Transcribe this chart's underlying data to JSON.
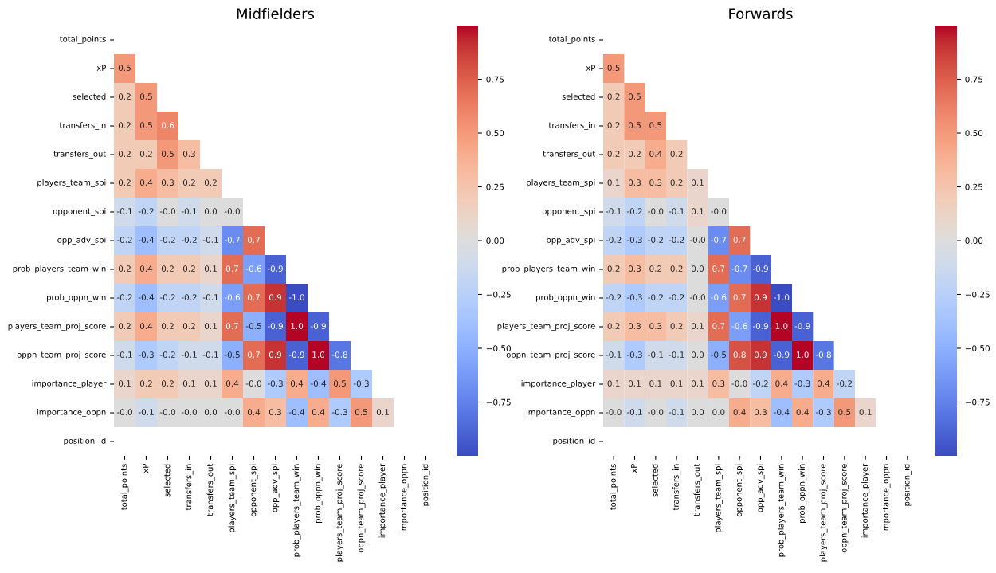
{
  "chart_data": [
    {
      "type": "heatmap",
      "title": "Midfielders",
      "categories": [
        "total_points",
        "xP",
        "selected",
        "transfers_in",
        "transfers_out",
        "players_team_spi",
        "opponent_spi",
        "opp_adv_spi",
        "prob_players_team_win",
        "prob_oppn_win",
        "players_team_proj_score",
        "oppn_team_proj_score",
        "importance_player",
        "importance_oppn",
        "position_id"
      ],
      "y_categories": [
        "total_points",
        "xP",
        "selected",
        "transfers_in",
        "transfers_out",
        "players_team_spi",
        "opponent_spi",
        "opp_adv_spi",
        "prob_players_team_win",
        "prob_oppn_win",
        "players_team_proj_score",
        "oppn_team_proj_score",
        "importance_player",
        "importance_oppn",
        "position_id"
      ],
      "cells": [
        [
          null,
          null,
          null,
          null,
          null,
          null,
          null,
          null,
          null,
          null,
          null,
          null,
          null,
          null,
          null
        ],
        [
          0.5,
          null,
          null,
          null,
          null,
          null,
          null,
          null,
          null,
          null,
          null,
          null,
          null,
          null,
          null
        ],
        [
          0.2,
          0.5,
          null,
          null,
          null,
          null,
          null,
          null,
          null,
          null,
          null,
          null,
          null,
          null,
          null
        ],
        [
          0.2,
          0.5,
          0.6,
          null,
          null,
          null,
          null,
          null,
          null,
          null,
          null,
          null,
          null,
          null,
          null
        ],
        [
          0.2,
          0.2,
          0.5,
          0.3,
          null,
          null,
          null,
          null,
          null,
          null,
          null,
          null,
          null,
          null,
          null
        ],
        [
          0.2,
          0.4,
          0.3,
          0.2,
          0.2,
          null,
          null,
          null,
          null,
          null,
          null,
          null,
          null,
          null,
          null
        ],
        [
          -0.1,
          -0.2,
          0,
          -0.1,
          0,
          0,
          null,
          null,
          null,
          null,
          null,
          null,
          null,
          null,
          null
        ],
        [
          -0.2,
          -0.4,
          -0.2,
          -0.2,
          -0.1,
          -0.7,
          0.7,
          null,
          null,
          null,
          null,
          null,
          null,
          null,
          null
        ],
        [
          0.2,
          0.4,
          0.2,
          0.2,
          0.1,
          0.7,
          -0.6,
          -0.9,
          null,
          null,
          null,
          null,
          null,
          null,
          null
        ],
        [
          -0.2,
          -0.4,
          -0.2,
          -0.2,
          -0.1,
          -0.6,
          0.7,
          0.9,
          -1,
          null,
          null,
          null,
          null,
          null,
          null
        ],
        [
          0.2,
          0.4,
          0.2,
          0.2,
          0.1,
          0.7,
          -0.5,
          -0.9,
          1,
          -0.9,
          null,
          null,
          null,
          null,
          null
        ],
        [
          -0.1,
          -0.3,
          -0.2,
          -0.1,
          -0.1,
          -0.5,
          0.7,
          0.9,
          -0.9,
          1,
          -0.8,
          null,
          null,
          null,
          null
        ],
        [
          0.1,
          0.2,
          0.2,
          0.1,
          0.1,
          0.4,
          0,
          -0.3,
          0.4,
          -0.4,
          0.5,
          -0.3,
          null,
          null,
          null
        ],
        [
          0,
          -0.1,
          0,
          0,
          0,
          0,
          0.4,
          0.3,
          -0.4,
          0.4,
          -0.3,
          0.5,
          0.1,
          null,
          null
        ],
        [
          null,
          null,
          null,
          null,
          null,
          null,
          null,
          null,
          null,
          null,
          null,
          null,
          null,
          null,
          null
        ]
      ],
      "cell_labels": [
        [
          null,
          null,
          null,
          null,
          null,
          null,
          null,
          null,
          null,
          null,
          null,
          null,
          null,
          null,
          null
        ],
        [
          "0.5",
          null,
          null,
          null,
          null,
          null,
          null,
          null,
          null,
          null,
          null,
          null,
          null,
          null,
          null
        ],
        [
          "0.2",
          "0.5",
          null,
          null,
          null,
          null,
          null,
          null,
          null,
          null,
          null,
          null,
          null,
          null,
          null
        ],
        [
          "0.2",
          "0.5",
          "0.6",
          null,
          null,
          null,
          null,
          null,
          null,
          null,
          null,
          null,
          null,
          null,
          null
        ],
        [
          "0.2",
          "0.2",
          "0.5",
          "0.3",
          null,
          null,
          null,
          null,
          null,
          null,
          null,
          null,
          null,
          null,
          null
        ],
        [
          "0.2",
          "0.4",
          "0.3",
          "0.2",
          "0.2",
          null,
          null,
          null,
          null,
          null,
          null,
          null,
          null,
          null,
          null
        ],
        [
          "-0.1",
          "-0.2",
          "-0.0",
          "-0.1",
          "0.0",
          "-0.0",
          null,
          null,
          null,
          null,
          null,
          null,
          null,
          null,
          null
        ],
        [
          "-0.2",
          "-0.4",
          "-0.2",
          "-0.2",
          "-0.1",
          "-0.7",
          "0.7",
          null,
          null,
          null,
          null,
          null,
          null,
          null,
          null
        ],
        [
          "0.2",
          "0.4",
          "0.2",
          "0.2",
          "0.1",
          "0.7",
          "-0.6",
          "-0.9",
          null,
          null,
          null,
          null,
          null,
          null,
          null
        ],
        [
          "-0.2",
          "-0.4",
          "-0.2",
          "-0.2",
          "-0.1",
          "-0.6",
          "0.7",
          "0.9",
          "-1.0",
          null,
          null,
          null,
          null,
          null,
          null
        ],
        [
          "0.2",
          "0.4",
          "0.2",
          "0.2",
          "0.1",
          "0.7",
          "-0.5",
          "-0.9",
          "1.0",
          "-0.9",
          null,
          null,
          null,
          null,
          null
        ],
        [
          "-0.1",
          "-0.3",
          "-0.2",
          "-0.1",
          "-0.1",
          "-0.5",
          "0.7",
          "0.9",
          "-0.9",
          "1.0",
          "-0.8",
          null,
          null,
          null,
          null
        ],
        [
          "0.1",
          "0.2",
          "0.2",
          "0.1",
          "0.1",
          "0.4",
          "-0.0",
          "-0.3",
          "0.4",
          "-0.4",
          "0.5",
          "-0.3",
          null,
          null,
          null
        ],
        [
          "-0.0",
          "-0.1",
          "-0.0",
          "-0.0",
          "0.0",
          "-0.0",
          "0.4",
          "0.3",
          "-0.4",
          "0.4",
          "-0.3",
          "0.5",
          "0.1",
          null,
          null
        ],
        [
          null,
          null,
          null,
          null,
          null,
          null,
          null,
          null,
          null,
          null,
          null,
          null,
          null,
          null,
          null
        ]
      ],
      "clim": [
        -1.0,
        1.0
      ],
      "cticks": [
        {
          "value": -0.75,
          "label": "−0.75"
        },
        {
          "value": -0.5,
          "label": "−0.50"
        },
        {
          "value": -0.25,
          "label": "−0.25"
        },
        {
          "value": 0,
          "label": "0.00"
        },
        {
          "value": 0.25,
          "label": "0.25"
        },
        {
          "value": 0.5,
          "label": "0.50"
        },
        {
          "value": 0.75,
          "label": "0.75"
        }
      ]
    },
    {
      "type": "heatmap",
      "title": "Forwards",
      "categories": [
        "total_points",
        "xP",
        "selected",
        "transfers_in",
        "transfers_out",
        "players_team_spi",
        "opponent_spi",
        "opp_adv_spi",
        "prob_players_team_win",
        "prob_oppn_win",
        "players_team_proj_score",
        "oppn_team_proj_score",
        "importance_player",
        "importance_oppn",
        "position_id"
      ],
      "y_categories": [
        "total_points",
        "xP",
        "selected",
        "transfers_in",
        "transfers_out",
        "players_team_spi",
        "opponent_spi",
        "opp_adv_spi",
        "prob_players_team_win",
        "prob_oppn_win",
        "players_team_proj_score",
        "oppn_team_proj_score",
        "importance_player",
        "importance_oppn",
        "position_id"
      ],
      "cells": [
        [
          null,
          null,
          null,
          null,
          null,
          null,
          null,
          null,
          null,
          null,
          null,
          null,
          null,
          null,
          null
        ],
        [
          0.5,
          null,
          null,
          null,
          null,
          null,
          null,
          null,
          null,
          null,
          null,
          null,
          null,
          null,
          null
        ],
        [
          0.2,
          0.5,
          null,
          null,
          null,
          null,
          null,
          null,
          null,
          null,
          null,
          null,
          null,
          null,
          null
        ],
        [
          0.2,
          0.5,
          0.5,
          null,
          null,
          null,
          null,
          null,
          null,
          null,
          null,
          null,
          null,
          null,
          null
        ],
        [
          0.2,
          0.2,
          0.4,
          0.2,
          null,
          null,
          null,
          null,
          null,
          null,
          null,
          null,
          null,
          null,
          null
        ],
        [
          0.1,
          0.3,
          0.3,
          0.2,
          0.1,
          null,
          null,
          null,
          null,
          null,
          null,
          null,
          null,
          null,
          null
        ],
        [
          -0.1,
          -0.2,
          0,
          -0.1,
          0.1,
          0,
          null,
          null,
          null,
          null,
          null,
          null,
          null,
          null,
          null
        ],
        [
          -0.2,
          -0.3,
          -0.2,
          -0.2,
          0,
          -0.7,
          0.7,
          null,
          null,
          null,
          null,
          null,
          null,
          null,
          null
        ],
        [
          0.2,
          0.3,
          0.2,
          0.2,
          0,
          0.7,
          -0.7,
          -0.9,
          null,
          null,
          null,
          null,
          null,
          null,
          null
        ],
        [
          -0.2,
          -0.3,
          -0.2,
          -0.2,
          0,
          -0.6,
          0.7,
          0.9,
          -1,
          null,
          null,
          null,
          null,
          null,
          null
        ],
        [
          0.2,
          0.3,
          0.3,
          0.2,
          0.1,
          0.7,
          -0.6,
          -0.9,
          1,
          -0.9,
          null,
          null,
          null,
          null,
          null
        ],
        [
          -0.1,
          -0.3,
          -0.1,
          -0.1,
          0,
          -0.5,
          0.8,
          0.9,
          -0.9,
          1,
          -0.8,
          null,
          null,
          null,
          null
        ],
        [
          0.1,
          0.1,
          0.1,
          0.1,
          0.1,
          0.3,
          0,
          -0.2,
          0.4,
          -0.3,
          0.4,
          -0.2,
          null,
          null,
          null
        ],
        [
          0,
          -0.1,
          0,
          -0.1,
          0,
          0,
          0.4,
          0.3,
          -0.4,
          0.4,
          -0.3,
          0.5,
          0.1,
          null,
          null
        ],
        [
          null,
          null,
          null,
          null,
          null,
          null,
          null,
          null,
          null,
          null,
          null,
          null,
          null,
          null,
          null
        ]
      ],
      "cell_labels": [
        [
          null,
          null,
          null,
          null,
          null,
          null,
          null,
          null,
          null,
          null,
          null,
          null,
          null,
          null,
          null
        ],
        [
          "0.5",
          null,
          null,
          null,
          null,
          null,
          null,
          null,
          null,
          null,
          null,
          null,
          null,
          null,
          null
        ],
        [
          "0.2",
          "0.5",
          null,
          null,
          null,
          null,
          null,
          null,
          null,
          null,
          null,
          null,
          null,
          null,
          null
        ],
        [
          "0.2",
          "0.5",
          "0.5",
          null,
          null,
          null,
          null,
          null,
          null,
          null,
          null,
          null,
          null,
          null,
          null
        ],
        [
          "0.2",
          "0.2",
          "0.4",
          "0.2",
          null,
          null,
          null,
          null,
          null,
          null,
          null,
          null,
          null,
          null,
          null
        ],
        [
          "0.1",
          "0.3",
          "0.3",
          "0.2",
          "0.1",
          null,
          null,
          null,
          null,
          null,
          null,
          null,
          null,
          null,
          null
        ],
        [
          "-0.1",
          "-0.2",
          "-0.0",
          "-0.1",
          "0.1",
          "-0.0",
          null,
          null,
          null,
          null,
          null,
          null,
          null,
          null,
          null
        ],
        [
          "-0.2",
          "-0.3",
          "-0.2",
          "-0.2",
          "-0.0",
          "-0.7",
          "0.7",
          null,
          null,
          null,
          null,
          null,
          null,
          null,
          null
        ],
        [
          "0.2",
          "0.3",
          "0.2",
          "0.2",
          "0.0",
          "0.7",
          "-0.7",
          "-0.9",
          null,
          null,
          null,
          null,
          null,
          null,
          null
        ],
        [
          "-0.2",
          "-0.3",
          "-0.2",
          "-0.2",
          "-0.0",
          "-0.6",
          "0.7",
          "0.9",
          "-1.0",
          null,
          null,
          null,
          null,
          null,
          null
        ],
        [
          "0.2",
          "0.3",
          "0.3",
          "0.2",
          "0.1",
          "0.7",
          "-0.6",
          "-0.9",
          "1.0",
          "-0.9",
          null,
          null,
          null,
          null,
          null
        ],
        [
          "-0.1",
          "-0.3",
          "-0.1",
          "-0.1",
          "0.0",
          "-0.5",
          "0.8",
          "0.9",
          "-0.9",
          "1.0",
          "-0.8",
          null,
          null,
          null,
          null
        ],
        [
          "0.1",
          "0.1",
          "0.1",
          "0.1",
          "0.1",
          "0.3",
          "-0.0",
          "-0.2",
          "0.4",
          "-0.3",
          "0.4",
          "-0.2",
          null,
          null,
          null
        ],
        [
          "-0.0",
          "-0.1",
          "-0.0",
          "-0.1",
          "0.0",
          "0.0",
          "0.4",
          "0.3",
          "-0.4",
          "0.4",
          "-0.3",
          "0.5",
          "0.1",
          null,
          null
        ],
        [
          null,
          null,
          null,
          null,
          null,
          null,
          null,
          null,
          null,
          null,
          null,
          null,
          null,
          null,
          null
        ]
      ],
      "clim": [
        -1.0,
        1.0
      ],
      "cticks": [
        {
          "value": -0.75,
          "label": "−0.75"
        },
        {
          "value": -0.5,
          "label": "−0.50"
        },
        {
          "value": -0.25,
          "label": "−0.25"
        },
        {
          "value": 0,
          "label": "0.00"
        },
        {
          "value": 0.25,
          "label": "0.25"
        },
        {
          "value": 0.5,
          "label": "0.50"
        },
        {
          "value": 0.75,
          "label": "0.75"
        }
      ]
    }
  ]
}
